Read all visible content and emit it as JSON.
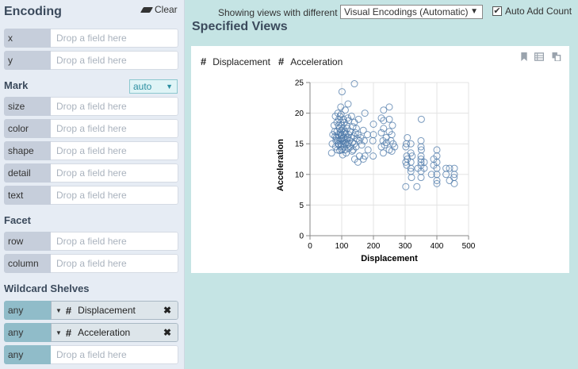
{
  "encoding": {
    "title": "Encoding",
    "clear_label": "Clear",
    "x_label": "x",
    "y_label": "y",
    "drop_placeholder": "Drop a field here"
  },
  "mark": {
    "title": "Mark",
    "selected": "auto",
    "channels": [
      "size",
      "color",
      "shape",
      "detail",
      "text"
    ]
  },
  "facet": {
    "title": "Facet",
    "channels": [
      "row",
      "column"
    ]
  },
  "wildcard": {
    "title": "Wildcard Shelves",
    "shelves": [
      {
        "label": "any",
        "field": "Displacement"
      },
      {
        "label": "any",
        "field": "Acceleration"
      },
      {
        "label": "any",
        "field": ""
      }
    ]
  },
  "toolbar": {
    "showing_text": "Showing views with different",
    "views_select": "Visual Encodings (Automatic)",
    "auto_add_label": "Auto Add Count",
    "auto_add_checked": true
  },
  "specified": {
    "title": "Specified Views",
    "fields": [
      "Displacement",
      "Acceleration"
    ]
  },
  "chart_data": {
    "type": "scatter",
    "title": "",
    "xlabel": "Displacement",
    "ylabel": "Acceleration",
    "xlim": [
      0,
      500
    ],
    "ylim": [
      0,
      25
    ],
    "xticks": [
      0,
      100,
      200,
      300,
      400,
      500
    ],
    "yticks": [
      0,
      5,
      10,
      15,
      20,
      25
    ],
    "grid": true,
    "color": "#4c78a8",
    "points": [
      [
        68,
        13.5
      ],
      [
        70,
        15
      ],
      [
        72,
        16.5
      ],
      [
        76,
        18
      ],
      [
        78,
        17
      ],
      [
        79,
        16.2
      ],
      [
        80,
        19.5
      ],
      [
        81,
        14.5
      ],
      [
        82,
        15.5
      ],
      [
        83,
        16
      ],
      [
        85,
        17
      ],
      [
        85,
        18.5
      ],
      [
        86,
        14
      ],
      [
        87,
        15.5
      ],
      [
        88,
        20
      ],
      [
        89,
        16.5
      ],
      [
        90,
        15
      ],
      [
        90,
        18
      ],
      [
        91,
        14.8
      ],
      [
        91,
        19
      ],
      [
        92,
        16
      ],
      [
        93,
        17.5
      ],
      [
        94,
        13.9
      ],
      [
        95,
        15.5
      ],
      [
        95,
        19.5
      ],
      [
        96,
        16.8
      ],
      [
        97,
        14.5
      ],
      [
        97,
        18.5
      ],
      [
        97,
        21
      ],
      [
        98,
        15
      ],
      [
        98,
        16.4
      ],
      [
        98,
        19.8
      ],
      [
        99,
        17.2
      ],
      [
        100,
        14
      ],
      [
        100,
        15.8
      ],
      [
        100,
        18
      ],
      [
        101,
        16.5
      ],
      [
        101,
        23.5
      ],
      [
        102,
        15.5
      ],
      [
        103,
        13.2
      ],
      [
        104,
        17.5
      ],
      [
        105,
        15
      ],
      [
        105,
        19
      ],
      [
        106,
        16
      ],
      [
        107,
        14.5
      ],
      [
        108,
        18.5
      ],
      [
        108,
        16.8
      ],
      [
        109,
        15.5
      ],
      [
        110,
        14
      ],
      [
        110,
        17
      ],
      [
        111,
        20.5
      ],
      [
        112,
        15.2
      ],
      [
        113,
        16.6
      ],
      [
        114,
        13.5
      ],
      [
        115,
        18
      ],
      [
        116,
        15.8
      ],
      [
        116,
        14.8
      ],
      [
        117,
        17.5
      ],
      [
        118,
        16
      ],
      [
        119,
        19.2
      ],
      [
        120,
        15
      ],
      [
        120,
        21.5
      ],
      [
        121,
        14.2
      ],
      [
        122,
        16.5
      ],
      [
        122,
        18.8
      ],
      [
        125,
        15.5
      ],
      [
        127,
        17
      ],
      [
        128,
        14.5
      ],
      [
        130,
        16
      ],
      [
        131,
        19.5
      ],
      [
        133,
        13.8
      ],
      [
        134,
        15.2
      ],
      [
        135,
        17.8
      ],
      [
        136,
        14
      ],
      [
        138,
        16.3
      ],
      [
        140,
        15
      ],
      [
        140,
        18.5
      ],
      [
        140,
        24.8
      ],
      [
        141,
        12.5
      ],
      [
        143,
        16.8
      ],
      [
        145,
        14.5
      ],
      [
        146,
        17.5
      ],
      [
        148,
        15.8
      ],
      [
        151,
        16.5
      ],
      [
        151,
        12
      ],
      [
        153,
        19
      ],
      [
        156,
        15.5
      ],
      [
        156,
        13
      ],
      [
        160,
        16
      ],
      [
        163,
        14.8
      ],
      [
        168,
        12.5
      ],
      [
        168,
        17.2
      ],
      [
        171,
        15.5
      ],
      [
        173,
        13
      ],
      [
        173,
        20
      ],
      [
        181,
        16.5
      ],
      [
        183,
        14
      ],
      [
        198,
        15.5
      ],
      [
        199,
        13
      ],
      [
        200,
        16.5
      ],
      [
        200,
        18.2
      ],
      [
        225,
        14.5
      ],
      [
        225,
        16.8
      ],
      [
        225,
        19.2
      ],
      [
        230,
        15.5
      ],
      [
        231,
        13.5
      ],
      [
        232,
        17.5
      ],
      [
        232,
        18.8
      ],
      [
        232,
        20.5
      ],
      [
        235,
        14.8
      ],
      [
        240,
        16
      ],
      [
        241,
        15.2
      ],
      [
        250,
        17
      ],
      [
        250,
        14
      ],
      [
        250,
        19
      ],
      [
        250,
        21
      ],
      [
        255,
        15.5
      ],
      [
        258,
        16.5
      ],
      [
        258,
        13.8
      ],
      [
        260,
        18
      ],
      [
        262,
        15
      ],
      [
        267,
        14.5
      ],
      [
        302,
        12
      ],
      [
        302,
        14.5
      ],
      [
        302,
        8
      ],
      [
        304,
        15
      ],
      [
        305,
        13
      ],
      [
        305,
        11.5
      ],
      [
        307,
        12.5
      ],
      [
        307,
        16
      ],
      [
        318,
        12
      ],
      [
        318,
        10.5
      ],
      [
        318,
        13.5
      ],
      [
        318,
        15
      ],
      [
        318,
        11
      ],
      [
        320,
        9.5
      ],
      [
        322,
        13
      ],
      [
        337,
        8
      ],
      [
        340,
        11
      ],
      [
        350,
        12
      ],
      [
        350,
        13
      ],
      [
        350,
        11.5
      ],
      [
        350,
        14.5
      ],
      [
        350,
        15.5
      ],
      [
        350,
        10.5
      ],
      [
        350,
        9.5
      ],
      [
        350,
        12.5
      ],
      [
        351,
        14
      ],
      [
        351,
        19
      ],
      [
        360,
        12
      ],
      [
        360,
        11
      ],
      [
        383,
        10
      ],
      [
        390,
        11.5
      ],
      [
        390,
        12.5
      ],
      [
        400,
        9
      ],
      [
        400,
        11
      ],
      [
        400,
        12
      ],
      [
        400,
        13
      ],
      [
        400,
        14
      ],
      [
        400,
        10
      ],
      [
        400,
        8.5
      ],
      [
        429,
        11
      ],
      [
        429,
        10
      ],
      [
        440,
        11
      ],
      [
        440,
        9
      ],
      [
        454,
        9.5
      ],
      [
        455,
        10
      ],
      [
        455,
        11
      ],
      [
        455,
        8.5
      ]
    ]
  }
}
